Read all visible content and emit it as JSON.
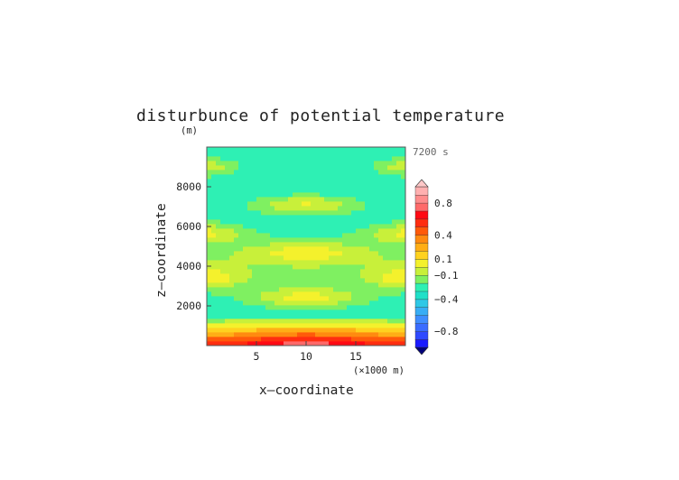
{
  "chart_data": {
    "type": "heatmap",
    "title": "disturbunce of potential temperature",
    "y_unit": "(m)",
    "x_unit_label": "(×1000 m)",
    "xlabel": "x–coordinate",
    "ylabel": "z–coordinate",
    "time_label": "7200 s",
    "xlim": [
      0,
      20
    ],
    "ylim": [
      0,
      10000
    ],
    "x_ticks": [
      5,
      10,
      15
    ],
    "y_ticks": [
      2000,
      4000,
      6000,
      8000
    ],
    "x_tick_labels": [
      "5",
      "10",
      "15"
    ],
    "y_tick_labels": [
      "2000",
      "4000",
      "6000",
      "8000"
    ],
    "colorbar": {
      "levels": [
        -1.0,
        -0.9,
        -0.8,
        -0.7,
        -0.6,
        -0.5,
        -0.4,
        -0.3,
        -0.2,
        -0.1,
        0.0,
        0.1,
        0.2,
        0.3,
        0.4,
        0.5,
        0.6,
        0.7,
        0.8,
        0.9,
        1.0
      ],
      "colors": [
        "#1a1aff",
        "#2f49ff",
        "#3a6cff",
        "#3f8dff",
        "#38adf5",
        "#2ec8e6",
        "#1fe0c8",
        "#2ef0b4",
        "#7ff061",
        "#c8f03a",
        "#f4f12c",
        "#ffd21f",
        "#ffae16",
        "#ff8a10",
        "#ff5a0a",
        "#ff2d10",
        "#ff0a14",
        "#ff6a6a",
        "#ff8c8c",
        "#ffb0b0"
      ],
      "under_color": "#00007a",
      "over_color": "#ffc8c8",
      "tick_labels": [
        "0.8",
        "0.4",
        "0.1",
        "−0.1",
        "−0.4",
        "−0.8"
      ],
      "tick_values": [
        0.8,
        0.4,
        0.1,
        -0.1,
        -0.4,
        -0.8
      ]
    },
    "field": {
      "description_values": {
        "background": -0.3,
        "surface_min": 0.65,
        "upper_corner_blobs": -0.05,
        "layer_bands": -0.15
      }
    }
  }
}
